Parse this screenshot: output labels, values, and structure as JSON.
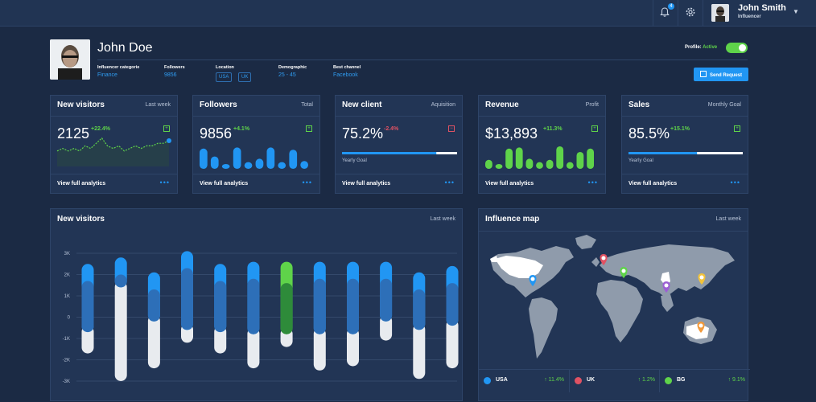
{
  "header": {
    "notification_count": "4",
    "user_name": "John Smith",
    "user_role": "Influencer"
  },
  "profile": {
    "name": "John Doe",
    "fields": [
      {
        "label": "Influencer categorie",
        "value": "Finance"
      },
      {
        "label": "Followers",
        "value": "9856"
      },
      {
        "label": "Location",
        "chips": [
          "USA",
          "UK"
        ]
      },
      {
        "label": "Demographic",
        "value": "25 - 45"
      },
      {
        "label": "Best channel",
        "value": "Facebook"
      }
    ],
    "status_label": "Profile:",
    "status_value": "Active",
    "status_on": true,
    "send_request": "Send Request"
  },
  "cards": [
    {
      "title": "New visitors",
      "subtitle": "Last week",
      "value": "2125",
      "change": "+22.4%",
      "trend": "up",
      "footer": "View full analytics",
      "viz": "line",
      "line": [
        6,
        7,
        6,
        7,
        6,
        8,
        7,
        9,
        11,
        8,
        7,
        8,
        6,
        7,
        8,
        7,
        8,
        8,
        9,
        9,
        10
      ]
    },
    {
      "title": "Followers",
      "subtitle": "Total",
      "value": "9856",
      "change": "+4.1%",
      "trend": "up",
      "footer": "View full analytics",
      "viz": "bars",
      "bars": [
        0.9,
        0.55,
        0.2,
        0.95,
        0.3,
        0.45,
        0.95,
        0.3,
        0.85,
        0.35
      ],
      "bar_color": "#2196f3"
    },
    {
      "title": "New client",
      "subtitle": "Aquisition",
      "value": "75.2%",
      "change": "-2.4%",
      "trend": "down",
      "footer": "View full analytics",
      "viz": "progress",
      "progress_label": "Yearly Goal",
      "progress": 0.82
    },
    {
      "title": "Revenue",
      "subtitle": "Profit",
      "value": "$13,893",
      "change": "+11.3%",
      "trend": "up",
      "footer": "View full analytics",
      "viz": "bars",
      "bars": [
        0.4,
        0.15,
        0.9,
        0.95,
        0.45,
        0.3,
        0.4,
        1.0,
        0.3,
        0.75,
        0.9
      ],
      "bar_color": "#5fd34a"
    },
    {
      "title": "Sales",
      "subtitle": "Monthly Goal",
      "value": "85.5%",
      "change": "+15.1%",
      "trend": "up",
      "footer": "View full analytics",
      "viz": "progress",
      "progress_label": "Yearly Goal",
      "progress": 0.6
    }
  ],
  "visitors_chart": {
    "title": "New visitors",
    "subtitle": "Last week",
    "chart_data": {
      "type": "bar",
      "yticks": [
        "3K",
        "2K",
        "1K",
        "0",
        "-1K",
        "-2K",
        "-3K"
      ],
      "ylim": [
        -3000,
        3000
      ],
      "grid": true,
      "series": [
        {
          "dark_top": 2500,
          "dark_bottom": -700,
          "light_top": -700,
          "light_bottom": -1700
        },
        {
          "dark_top": 2800,
          "dark_bottom": 1400,
          "light_top": 1400,
          "light_bottom": -3000
        },
        {
          "dark_top": 2100,
          "dark_bottom": -200,
          "light_top": -200,
          "light_bottom": -2400
        },
        {
          "dark_top": 3100,
          "dark_bottom": -600,
          "light_top": -600,
          "light_bottom": -1200
        },
        {
          "dark_top": 2500,
          "dark_bottom": -700,
          "light_top": -700,
          "light_bottom": -1700
        },
        {
          "dark_top": 2600,
          "dark_bottom": -800,
          "light_top": -800,
          "light_bottom": -2400
        },
        {
          "dark_top": 2600,
          "dark_bottom": -800,
          "light_top": -800,
          "light_bottom": -1400,
          "highlight": true
        },
        {
          "dark_top": 2600,
          "dark_bottom": -800,
          "light_top": -800,
          "light_bottom": -2500
        },
        {
          "dark_top": 2600,
          "dark_bottom": -800,
          "light_top": -800,
          "light_bottom": -2300
        },
        {
          "dark_top": 2600,
          "dark_bottom": -200,
          "light_top": -200,
          "light_bottom": -1100
        },
        {
          "dark_top": 2100,
          "dark_bottom": -600,
          "light_top": -600,
          "light_bottom": -2900
        },
        {
          "dark_top": 2400,
          "dark_bottom": -400,
          "light_top": -400,
          "light_bottom": -2400
        }
      ]
    }
  },
  "map": {
    "title": "Influence map",
    "subtitle": "Last week",
    "pins": [
      {
        "name": "usa-pin-icon",
        "color": "#2196f3"
      },
      {
        "name": "uk-pin-icon",
        "color": "#e05263"
      },
      {
        "name": "europe-pin-icon",
        "color": "#5fd34a"
      },
      {
        "name": "india-pin-icon",
        "color": "#9c5fd4"
      },
      {
        "name": "japan-pin-icon",
        "color": "#f2c33b"
      },
      {
        "name": "australia-pin-icon",
        "color": "#f29a3b"
      }
    ],
    "legend": [
      {
        "country": "USA",
        "change": "↑ 11.4%",
        "color": "#2196f3"
      },
      {
        "country": "UK",
        "change": "↑ 1.2%",
        "color": "#e05263"
      },
      {
        "country": "BG",
        "change": "↑ 9.1%",
        "color": "#5fd34a"
      }
    ]
  }
}
